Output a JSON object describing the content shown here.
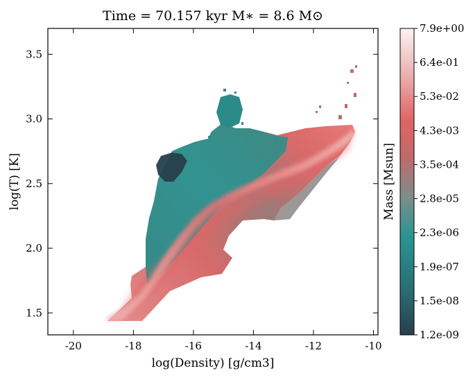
{
  "chart_data": {
    "type": "heatmap",
    "title": "Time = 70.157 kyr   M$_*$ = 8.6 M$_\\odot$",
    "title_display": "Time = 70.157 kyr   M∗ = 8.6 M⊙",
    "xlabel": "log(Density) [g/cm3]",
    "ylabel": "log(T) [K]",
    "xlim": [
      -20.85,
      -9.85
    ],
    "ylim": [
      1.33,
      3.7
    ],
    "x_ticks": [
      -20,
      -18,
      -16,
      -14,
      -12,
      -10
    ],
    "x_tick_labels": [
      "-20",
      "-18",
      "-16",
      "-14",
      "-12",
      "-10"
    ],
    "y_ticks": [
      1.5,
      2.0,
      2.5,
      3.0,
      3.5
    ],
    "y_tick_labels": [
      "1.5",
      "2.0",
      "2.5",
      "3.0",
      "3.5"
    ],
    "colorbar": {
      "label": "Mass [Msun]",
      "scale": "log",
      "ticks": [
        "1.2e-09",
        "1.5e-08",
        "1.9e-07",
        "2.3e-06",
        "2.8e-05",
        "3.5e-04",
        "4.3e-03",
        "5.3e-02",
        "6.4e-01",
        "7.9e+00"
      ],
      "colors": [
        "#283f4d",
        "#2a6e74",
        "#2a9492",
        "#7c8e8a",
        "#c06a6a",
        "#e06464",
        "#ecb0b0",
        "#fbf3f3"
      ]
    },
    "grid": false,
    "legend": "none"
  }
}
